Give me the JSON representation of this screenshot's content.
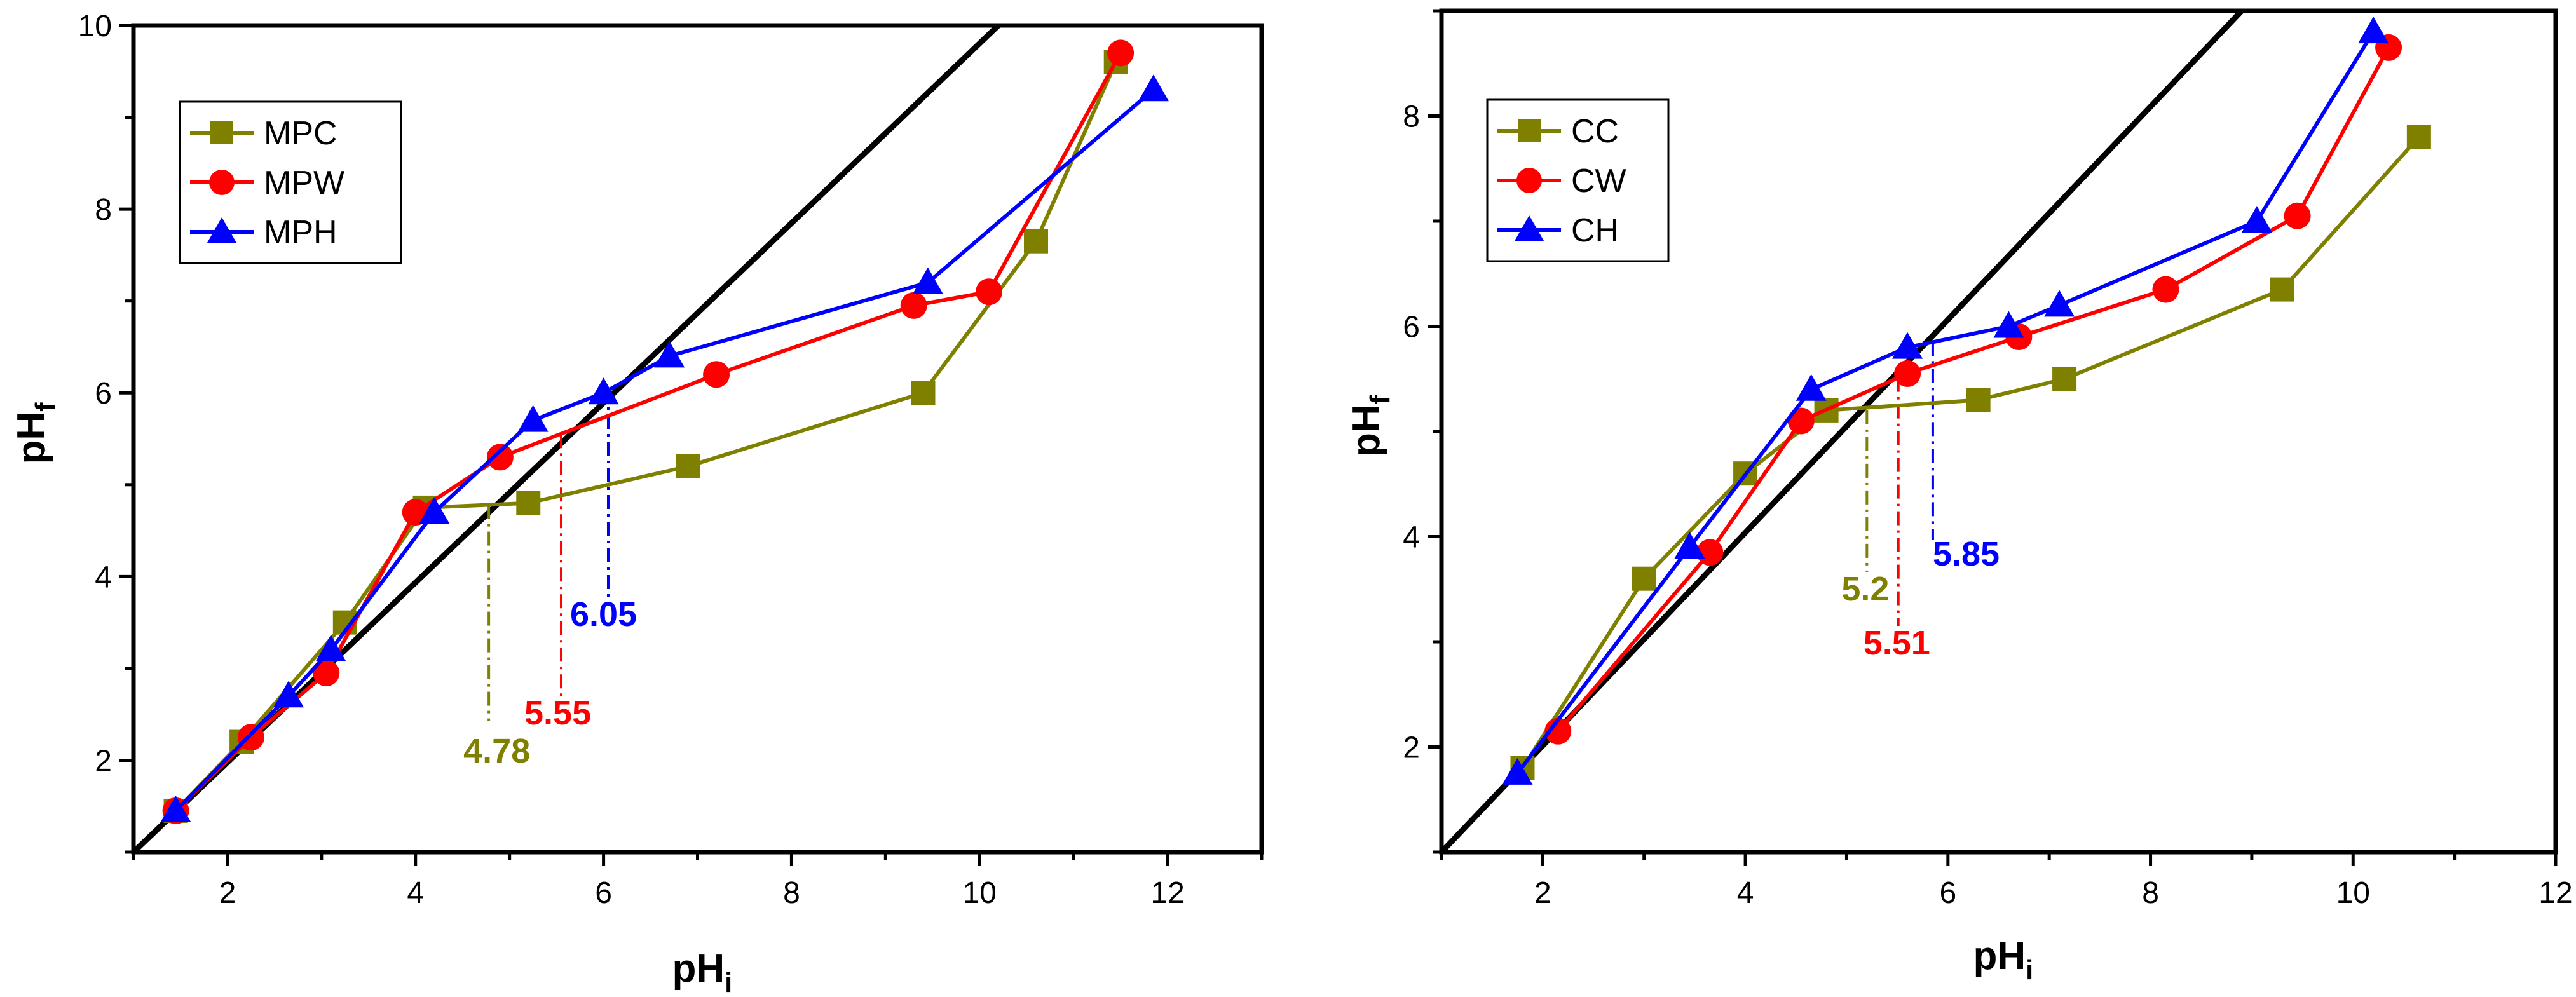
{
  "chart_data": [
    {
      "type": "line",
      "title": "",
      "xlabel": "pH",
      "xlabel_sub": "i",
      "ylabel": "pH",
      "ylabel_sub": "f",
      "xlim": [
        1,
        13
      ],
      "ylim": [
        1,
        10
      ],
      "xticks": [
        2,
        4,
        6,
        8,
        10,
        12
      ],
      "yticks": [
        2,
        4,
        6,
        8,
        10
      ],
      "legend_position": "top-left",
      "diagonal": [
        [
          1,
          1
        ],
        [
          10.2,
          10
        ]
      ],
      "series": [
        {
          "name": "MPC",
          "color": "#808000",
          "marker": "square",
          "x": [
            1.45,
            2.15,
            3.25,
            4.1,
            5.2,
            6.9,
            9.4,
            10.6,
            11.45
          ],
          "y": [
            1.45,
            2.2,
            3.5,
            4.75,
            4.8,
            5.2,
            6.0,
            7.65,
            9.6
          ]
        },
        {
          "name": "MPW",
          "color": "#ff0000",
          "marker": "circle",
          "x": [
            1.45,
            2.25,
            3.05,
            4.0,
            4.9,
            7.2,
            9.3,
            10.1,
            11.5
          ],
          "y": [
            1.45,
            2.25,
            2.95,
            4.7,
            5.3,
            6.2,
            6.95,
            7.1,
            9.7
          ]
        },
        {
          "name": "MPH",
          "color": "#0000ff",
          "marker": "triangle",
          "x": [
            1.45,
            2.65,
            3.1,
            4.2,
            5.25,
            6.0,
            6.7,
            9.45,
            11.85
          ],
          "y": [
            1.45,
            2.7,
            3.2,
            4.7,
            5.7,
            6.0,
            6.4,
            7.2,
            9.3
          ]
        }
      ],
      "annotations": [
        {
          "label": "4.78",
          "x": 4.78,
          "y_top": 4.78,
          "color": "#808000"
        },
        {
          "label": "5.55",
          "x": 5.55,
          "y_top": 5.55,
          "color": "#ff0000"
        },
        {
          "label": "6.05",
          "x": 6.05,
          "y_top": 6.05,
          "color": "#0000ff"
        }
      ]
    },
    {
      "type": "line",
      "title": "",
      "xlabel": "pH",
      "xlabel_sub": "i",
      "ylabel": "pH",
      "ylabel_sub": "f",
      "xlim": [
        1,
        12
      ],
      "ylim": [
        1,
        9
      ],
      "xticks": [
        2,
        4,
        6,
        8,
        10,
        12
      ],
      "yticks": [
        2,
        4,
        6,
        8
      ],
      "legend_position": "top-left",
      "diagonal": [
        [
          1,
          1
        ],
        [
          8.9,
          9
        ]
      ],
      "series": [
        {
          "name": "CC",
          "color": "#808000",
          "marker": "square",
          "x": [
            1.8,
            3.0,
            4.0,
            4.8,
            6.3,
            7.15,
            9.3,
            10.65
          ],
          "y": [
            1.8,
            3.6,
            4.6,
            5.2,
            5.3,
            5.5,
            6.35,
            7.8
          ]
        },
        {
          "name": "CW",
          "color": "#ff0000",
          "marker": "circle",
          "x": [
            2.15,
            3.65,
            4.55,
            5.6,
            6.7,
            8.15,
            9.45,
            10.35
          ],
          "y": [
            2.15,
            3.85,
            5.1,
            5.55,
            5.9,
            6.35,
            7.05,
            8.65
          ]
        },
        {
          "name": "CH",
          "color": "#0000ff",
          "marker": "triangle",
          "x": [
            1.75,
            3.45,
            4.65,
            5.6,
            6.6,
            7.1,
            9.05,
            10.2
          ],
          "y": [
            1.75,
            3.9,
            5.4,
            5.8,
            6.0,
            6.2,
            7.0,
            8.8
          ]
        }
      ],
      "annotations": [
        {
          "label": "5.2",
          "x": 5.2,
          "y_top": 5.2,
          "color": "#808000"
        },
        {
          "label": "5.51",
          "x": 5.51,
          "y_top": 5.51,
          "color": "#ff0000"
        },
        {
          "label": "5.85",
          "x": 5.85,
          "y_top": 5.85,
          "color": "#0000ff"
        }
      ]
    }
  ]
}
